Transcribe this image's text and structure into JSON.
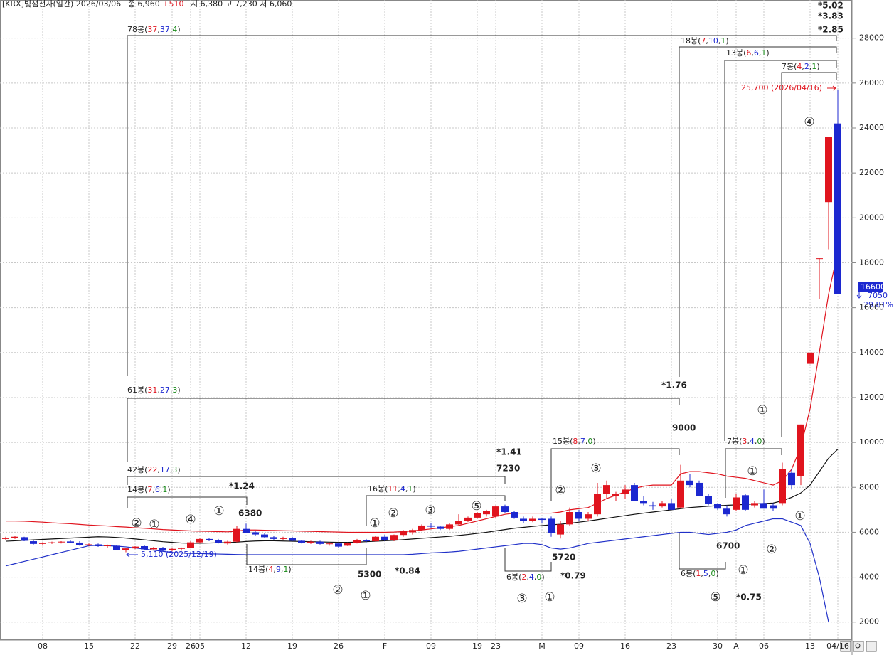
{
  "header": {
    "name": "[KRX]빛샘전자(일간)",
    "date": "2026/03/06",
    "close_label": "종",
    "close": "6,960",
    "change": "+510",
    "open_label": "시",
    "open": "6,380",
    "high_label": "고",
    "high": "7,230",
    "low_label": "저",
    "low": "6,060"
  },
  "chart_data": {
    "type": "candlestick",
    "categories": [
      null,
      null,
      null,
      null,
      "08",
      null,
      null,
      null,
      null,
      "15",
      null,
      null,
      null,
      null,
      "22",
      null,
      null,
      null,
      "29",
      null,
      "26",
      "05",
      null,
      null,
      null,
      null,
      "12",
      null,
      null,
      null,
      null,
      "19",
      null,
      null,
      null,
      null,
      "26",
      null,
      null,
      null,
      null,
      "F",
      null,
      null,
      null,
      null,
      "09",
      null,
      null,
      null,
      null,
      "19",
      null,
      "23",
      null,
      null,
      null,
      null,
      "M",
      null,
      null,
      null,
      "09",
      null,
      null,
      null,
      null,
      "16",
      null,
      null,
      null,
      null,
      "23",
      null,
      null,
      null,
      null,
      "30",
      null,
      "A",
      null,
      null,
      "06",
      null,
      null,
      null,
      null,
      "13",
      null,
      null,
      "04/16"
    ],
    "open": [
      5700,
      5750,
      5780,
      5600,
      5480,
      5520,
      5560,
      5590,
      5540,
      5420,
      5460,
      5380,
      5400,
      5220,
      5280,
      5380,
      5240,
      5300,
      5200,
      5260,
      5300,
      5550,
      5700,
      5650,
      5500,
      5580,
      6150,
      6000,
      5900,
      5780,
      5700,
      5750,
      5620,
      5540,
      5580,
      5480,
      5500,
      5400,
      5520,
      5660,
      5600,
      5800,
      5650,
      5880,
      6000,
      6100,
      6300,
      6250,
      6150,
      6350,
      6500,
      6650,
      6800,
      6700,
      7150,
      6900,
      6600,
      6500,
      6600,
      6600,
      5900,
      6350,
      6900,
      6600,
      6800,
      7700,
      7600,
      7700,
      8100,
      7400,
      7200,
      7150,
      7300,
      7100,
      8300,
      8200,
      7600,
      7250,
      7050,
      7000,
      7650,
      7200,
      7300,
      7200,
      7300,
      8650,
      8500,
      13500,
      18200,
      20700,
      24200
    ],
    "high": [
      5800,
      5850,
      5800,
      5650,
      5560,
      5580,
      5600,
      5650,
      5600,
      5500,
      5500,
      5450,
      5420,
      5300,
      5380,
      5420,
      5350,
      5350,
      5300,
      5320,
      5600,
      5750,
      5750,
      5700,
      5620,
      6300,
      6380,
      6050,
      5950,
      5850,
      5800,
      5800,
      5650,
      5620,
      5620,
      5560,
      5550,
      5550,
      5700,
      5700,
      5850,
      5900,
      5900,
      6100,
      6150,
      6350,
      6400,
      6300,
      6400,
      6800,
      6700,
      6900,
      7000,
      7200,
      7230,
      6950,
      6700,
      6700,
      6650,
      6700,
      6500,
      7100,
      7000,
      6900,
      8200,
      8300,
      7800,
      8100,
      8200,
      7600,
      7350,
      7400,
      7500,
      9000,
      8600,
      8300,
      7700,
      7300,
      7200,
      7700,
      7700,
      7400,
      7900,
      7300,
      9100,
      8800,
      10800,
      14000,
      18200,
      23600,
      25700
    ],
    "low": [
      5650,
      5700,
      5600,
      5450,
      5400,
      5480,
      5500,
      5520,
      5400,
      5380,
      5350,
      5300,
      5200,
      5110,
      5250,
      5200,
      5200,
      5150,
      5150,
      5180,
      5280,
      5500,
      5600,
      5500,
      5450,
      5550,
      5950,
      5850,
      5750,
      5650,
      5650,
      5600,
      5500,
      5480,
      5450,
      5400,
      5300,
      5380,
      5500,
      5550,
      5580,
      5600,
      5600,
      5800,
      5900,
      6050,
      6200,
      6100,
      6100,
      6300,
      6450,
      6600,
      6700,
      6650,
      6850,
      6600,
      6400,
      6450,
      6400,
      5800,
      5720,
      6300,
      6500,
      6500,
      6700,
      7500,
      7400,
      7500,
      7400,
      7200,
      7000,
      7100,
      7000,
      7050,
      8000,
      7600,
      7200,
      7000,
      6700,
      6950,
      6950,
      7100,
      7050,
      6950,
      7200,
      7900,
      8100,
      13500,
      16400,
      18600,
      16600
    ],
    "close": [
      5750,
      5800,
      5620,
      5480,
      5520,
      5550,
      5580,
      5540,
      5420,
      5460,
      5380,
      5420,
      5220,
      5280,
      5360,
      5240,
      5300,
      5180,
      5260,
      5300,
      5550,
      5700,
      5650,
      5520,
      5580,
      6150,
      5980,
      5900,
      5780,
      5700,
      5760,
      5620,
      5540,
      5580,
      5480,
      5500,
      5360,
      5520,
      5660,
      5600,
      5800,
      5650,
      5880,
      6050,
      6100,
      6300,
      6250,
      6150,
      6350,
      6500,
      6650,
      6850,
      6950,
      7150,
      6900,
      6650,
      6500,
      6600,
      6550,
      5950,
      6350,
      6900,
      6600,
      6800,
      7700,
      8100,
      7700,
      7900,
      7400,
      7300,
      7150,
      7300,
      7000,
      8300,
      8100,
      7600,
      7250,
      7050,
      6800,
      7550,
      7000,
      7300,
      7050,
      7050,
      8800,
      8100,
      10800,
      14000,
      18200,
      23600,
      16600
    ],
    "up_color": "#e0141e",
    "down_color": "#1c28d0",
    "lines": [
      {
        "color": "#e0141e",
        "values": [
          6500,
          6500,
          6490,
          6470,
          6450,
          6420,
          6400,
          6380,
          6350,
          6320,
          6300,
          6280,
          6250,
          6230,
          6200,
          6180,
          6150,
          6120,
          6100,
          6080,
          6060,
          6050,
          6040,
          6030,
          6020,
          6050,
          6100,
          6100,
          6090,
          6080,
          6070,
          6060,
          6050,
          6040,
          6030,
          6020,
          6010,
          6000,
          6000,
          6000,
          6000,
          6000,
          6010,
          6030,
          6060,
          6100,
          6150,
          6200,
          6250,
          6300,
          6400,
          6500,
          6600,
          6700,
          6800,
          6850,
          6850,
          6850,
          6850,
          6850,
          6900,
          7000,
          7050,
          7100,
          7300,
          7500,
          7650,
          7800,
          7950,
          8050,
          8100,
          8100,
          8100,
          8600,
          8700,
          8700,
          8650,
          8600,
          8500,
          8450,
          8400,
          8300,
          8200,
          8100,
          8300,
          8800,
          9800,
          11500,
          14000,
          16600,
          18500
        ]
      },
      {
        "color": "#111111",
        "values": [
          5600,
          5620,
          5640,
          5660,
          5680,
          5700,
          5720,
          5740,
          5760,
          5780,
          5800,
          5790,
          5770,
          5740,
          5700,
          5660,
          5620,
          5580,
          5550,
          5520,
          5510,
          5510,
          5520,
          5530,
          5540,
          5560,
          5590,
          5610,
          5620,
          5620,
          5610,
          5600,
          5590,
          5580,
          5570,
          5560,
          5550,
          5550,
          5560,
          5580,
          5600,
          5620,
          5640,
          5670,
          5700,
          5730,
          5760,
          5790,
          5820,
          5860,
          5900,
          5950,
          6000,
          6060,
          6120,
          6180,
          6220,
          6260,
          6300,
          6330,
          6360,
          6400,
          6450,
          6500,
          6560,
          6620,
          6680,
          6740,
          6800,
          6850,
          6900,
          6950,
          7000,
          7050,
          7100,
          7130,
          7160,
          7180,
          7200,
          7220,
          7240,
          7260,
          7280,
          7300,
          7400,
          7550,
          7750,
          8100,
          8700,
          9300,
          9700
        ]
      },
      {
        "color": "#2030c8",
        "values": [
          4500,
          4600,
          4700,
          4800,
          4900,
          5000,
          5100,
          5200,
          5300,
          5400,
          5420,
          5400,
          5380,
          5350,
          5300,
          5250,
          5200,
          5150,
          5100,
          5080,
          5060,
          5050,
          5040,
          5030,
          5020,
          5010,
          5000,
          5000,
          5000,
          5000,
          5000,
          5000,
          5000,
          5000,
          5000,
          5000,
          5000,
          5000,
          5000,
          5000,
          5000,
          5000,
          5000,
          5000,
          5020,
          5050,
          5080,
          5100,
          5120,
          5150,
          5200,
          5250,
          5300,
          5350,
          5400,
          5450,
          5500,
          5500,
          5450,
          5300,
          5250,
          5300,
          5400,
          5500,
          5550,
          5600,
          5650,
          5700,
          5750,
          5800,
          5850,
          5900,
          5950,
          6000,
          6000,
          5950,
          5900,
          5950,
          6000,
          6100,
          6300,
          6400,
          6500,
          6600,
          6600,
          6450,
          6300,
          5500,
          4000,
          2000,
          null
        ]
      }
    ],
    "ylim": [
      1200,
      29700
    ],
    "yticks": [
      2000,
      4000,
      6000,
      8000,
      10000,
      12000,
      14000,
      16000,
      18000,
      20000,
      22000,
      24000,
      26000,
      28000
    ],
    "grid": true,
    "bracket_labels": [
      [
        "78봉(",
        "37",
        ",",
        "37",
        ",",
        "4",
        ")"
      ],
      [
        "18봉(",
        "7",
        ",",
        "10",
        ",",
        "1",
        ")"
      ],
      [
        "13봉(",
        "6",
        ",",
        "6",
        ",",
        "1",
        ")"
      ],
      [
        "7봉(",
        "4",
        ",",
        "2",
        ",",
        "1",
        ")"
      ],
      [
        "61봉(",
        "31",
        ",",
        "27",
        ",",
        "3",
        ")"
      ],
      [
        "42봉(",
        "22",
        ",",
        "17",
        ",",
        "3",
        ")"
      ],
      [
        "14봉(",
        "7",
        ",",
        "6",
        ",",
        "1",
        ")"
      ],
      [
        "16봉(",
        "11",
        ",",
        "4",
        ",",
        "1",
        ")"
      ],
      [
        "15봉(",
        "8",
        ",",
        "7",
        ",",
        "0",
        ")"
      ],
      [
        "7봉(",
        "3",
        ",",
        "4",
        ",",
        "0",
        ")"
      ],
      [
        "14봉(",
        "4",
        ",",
        "9",
        ",",
        "1",
        ")"
      ],
      [
        "6봉(",
        "2",
        ",",
        "4",
        ",",
        "0",
        ")"
      ],
      [
        "6봉(",
        "1",
        ",",
        "5",
        ",",
        "0",
        ")"
      ]
    ],
    "notes": [
      "*5.02",
      "*3.83",
      "*2.85",
      "*1.76",
      "9000",
      "*1.41",
      "7230",
      "*1.24",
      "6380",
      "5300",
      "*0.84",
      "5720",
      "*0.79",
      "6700",
      "*0.75"
    ],
    "waves": [
      "②",
      "①",
      "④",
      "①",
      "②",
      "①",
      "①",
      "②",
      "③",
      "⑤",
      "③",
      "①",
      "②",
      "③",
      "⑤",
      "①",
      "②",
      "①",
      "①",
      "①",
      "④"
    ],
    "high_note": "25,700 (2026/04/16)",
    "low_note": "5,110 (2025/12/19)"
  },
  "price_box": {
    "price": "16600",
    "change": "7050",
    "pct": "29.81%"
  }
}
